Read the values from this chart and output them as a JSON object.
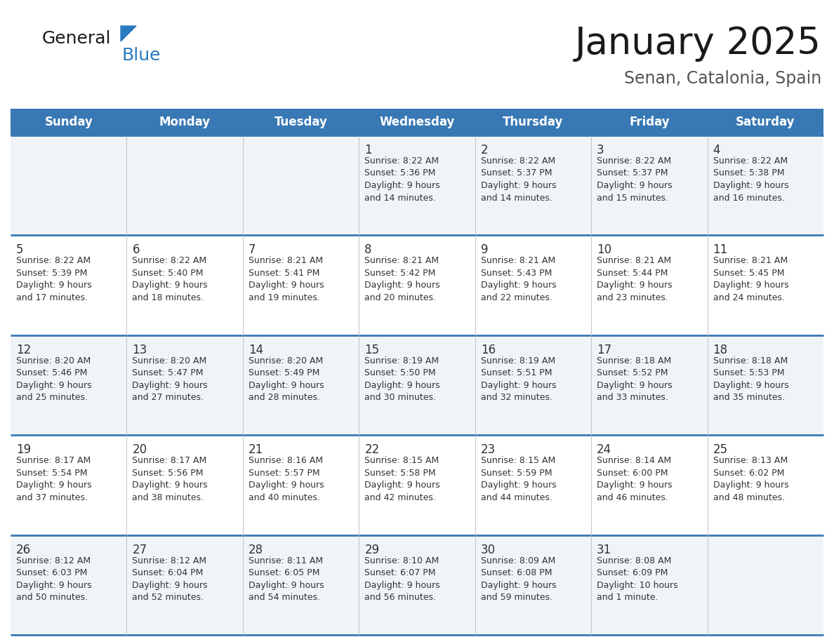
{
  "title": "January 2025",
  "subtitle": "Senan, Catalonia, Spain",
  "header_color": "#3878b4",
  "header_text_color": "#ffffff",
  "row_bg_odd": "#f0f4f8",
  "row_bg_even": "#ffffff",
  "separator_color": "#3878b4",
  "text_color": "#333333",
  "day_names": [
    "Sunday",
    "Monday",
    "Tuesday",
    "Wednesday",
    "Thursday",
    "Friday",
    "Saturday"
  ],
  "weeks": [
    [
      {
        "day": "",
        "info": ""
      },
      {
        "day": "",
        "info": ""
      },
      {
        "day": "",
        "info": ""
      },
      {
        "day": "1",
        "info": "Sunrise: 8:22 AM\nSunset: 5:36 PM\nDaylight: 9 hours\nand 14 minutes."
      },
      {
        "day": "2",
        "info": "Sunrise: 8:22 AM\nSunset: 5:37 PM\nDaylight: 9 hours\nand 14 minutes."
      },
      {
        "day": "3",
        "info": "Sunrise: 8:22 AM\nSunset: 5:37 PM\nDaylight: 9 hours\nand 15 minutes."
      },
      {
        "day": "4",
        "info": "Sunrise: 8:22 AM\nSunset: 5:38 PM\nDaylight: 9 hours\nand 16 minutes."
      }
    ],
    [
      {
        "day": "5",
        "info": "Sunrise: 8:22 AM\nSunset: 5:39 PM\nDaylight: 9 hours\nand 17 minutes."
      },
      {
        "day": "6",
        "info": "Sunrise: 8:22 AM\nSunset: 5:40 PM\nDaylight: 9 hours\nand 18 minutes."
      },
      {
        "day": "7",
        "info": "Sunrise: 8:21 AM\nSunset: 5:41 PM\nDaylight: 9 hours\nand 19 minutes."
      },
      {
        "day": "8",
        "info": "Sunrise: 8:21 AM\nSunset: 5:42 PM\nDaylight: 9 hours\nand 20 minutes."
      },
      {
        "day": "9",
        "info": "Sunrise: 8:21 AM\nSunset: 5:43 PM\nDaylight: 9 hours\nand 22 minutes."
      },
      {
        "day": "10",
        "info": "Sunrise: 8:21 AM\nSunset: 5:44 PM\nDaylight: 9 hours\nand 23 minutes."
      },
      {
        "day": "11",
        "info": "Sunrise: 8:21 AM\nSunset: 5:45 PM\nDaylight: 9 hours\nand 24 minutes."
      }
    ],
    [
      {
        "day": "12",
        "info": "Sunrise: 8:20 AM\nSunset: 5:46 PM\nDaylight: 9 hours\nand 25 minutes."
      },
      {
        "day": "13",
        "info": "Sunrise: 8:20 AM\nSunset: 5:47 PM\nDaylight: 9 hours\nand 27 minutes."
      },
      {
        "day": "14",
        "info": "Sunrise: 8:20 AM\nSunset: 5:49 PM\nDaylight: 9 hours\nand 28 minutes."
      },
      {
        "day": "15",
        "info": "Sunrise: 8:19 AM\nSunset: 5:50 PM\nDaylight: 9 hours\nand 30 minutes."
      },
      {
        "day": "16",
        "info": "Sunrise: 8:19 AM\nSunset: 5:51 PM\nDaylight: 9 hours\nand 32 minutes."
      },
      {
        "day": "17",
        "info": "Sunrise: 8:18 AM\nSunset: 5:52 PM\nDaylight: 9 hours\nand 33 minutes."
      },
      {
        "day": "18",
        "info": "Sunrise: 8:18 AM\nSunset: 5:53 PM\nDaylight: 9 hours\nand 35 minutes."
      }
    ],
    [
      {
        "day": "19",
        "info": "Sunrise: 8:17 AM\nSunset: 5:54 PM\nDaylight: 9 hours\nand 37 minutes."
      },
      {
        "day": "20",
        "info": "Sunrise: 8:17 AM\nSunset: 5:56 PM\nDaylight: 9 hours\nand 38 minutes."
      },
      {
        "day": "21",
        "info": "Sunrise: 8:16 AM\nSunset: 5:57 PM\nDaylight: 9 hours\nand 40 minutes."
      },
      {
        "day": "22",
        "info": "Sunrise: 8:15 AM\nSunset: 5:58 PM\nDaylight: 9 hours\nand 42 minutes."
      },
      {
        "day": "23",
        "info": "Sunrise: 8:15 AM\nSunset: 5:59 PM\nDaylight: 9 hours\nand 44 minutes."
      },
      {
        "day": "24",
        "info": "Sunrise: 8:14 AM\nSunset: 6:00 PM\nDaylight: 9 hours\nand 46 minutes."
      },
      {
        "day": "25",
        "info": "Sunrise: 8:13 AM\nSunset: 6:02 PM\nDaylight: 9 hours\nand 48 minutes."
      }
    ],
    [
      {
        "day": "26",
        "info": "Sunrise: 8:12 AM\nSunset: 6:03 PM\nDaylight: 9 hours\nand 50 minutes."
      },
      {
        "day": "27",
        "info": "Sunrise: 8:12 AM\nSunset: 6:04 PM\nDaylight: 9 hours\nand 52 minutes."
      },
      {
        "day": "28",
        "info": "Sunrise: 8:11 AM\nSunset: 6:05 PM\nDaylight: 9 hours\nand 54 minutes."
      },
      {
        "day": "29",
        "info": "Sunrise: 8:10 AM\nSunset: 6:07 PM\nDaylight: 9 hours\nand 56 minutes."
      },
      {
        "day": "30",
        "info": "Sunrise: 8:09 AM\nSunset: 6:08 PM\nDaylight: 9 hours\nand 59 minutes."
      },
      {
        "day": "31",
        "info": "Sunrise: 8:08 AM\nSunset: 6:09 PM\nDaylight: 10 hours\nand 1 minute."
      },
      {
        "day": "",
        "info": ""
      }
    ]
  ],
  "title_fontsize": 38,
  "subtitle_fontsize": 17,
  "header_fontsize": 12,
  "day_num_fontsize": 12,
  "info_fontsize": 9,
  "logo_general_fontsize": 18,
  "logo_blue_fontsize": 18
}
